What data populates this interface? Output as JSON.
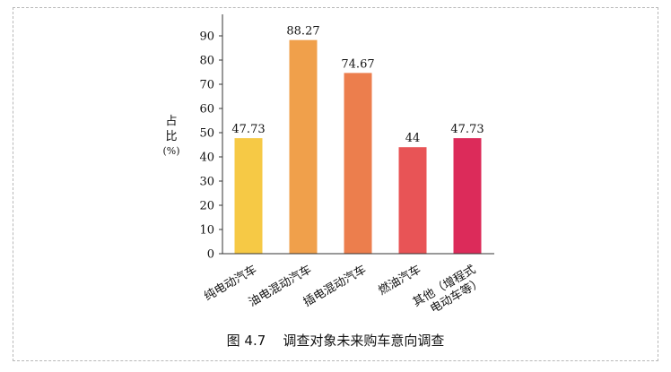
{
  "chart_data": {
    "type": "bar",
    "categories": [
      "纯电动汽车",
      "油电混动汽车",
      "插电混动汽车",
      "燃油汽车",
      "其他（增程式电动车等）"
    ],
    "category_lines": [
      [
        "纯电动汽车"
      ],
      [
        "油电混动汽车"
      ],
      [
        "插电混动汽车"
      ],
      [
        "燃油汽车"
      ],
      [
        "其他（增程式",
        "电动车等）"
      ]
    ],
    "values": [
      47.73,
      88.27,
      74.67,
      44,
      47.73
    ],
    "data_labels": [
      "47.73",
      "88.27",
      "74.67",
      "44",
      "47.73"
    ],
    "colors": [
      "#f6c945",
      "#f0a04b",
      "#ec7e4d",
      "#e85456",
      "#dc2b5a"
    ],
    "ylabel_lines": [
      "占",
      "比",
      "(%)"
    ],
    "yticks": [
      "0",
      "10",
      "20",
      "30",
      "40",
      "50",
      "60",
      "70",
      "80",
      "90"
    ],
    "ylim": [
      0,
      100
    ],
    "grid": false
  },
  "caption": {
    "figure_no": "图 4.7",
    "title": "调查对象未来购车意向调查"
  }
}
